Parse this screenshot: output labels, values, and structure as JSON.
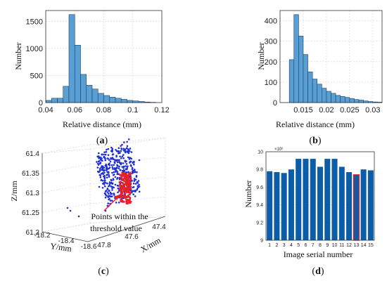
{
  "chart_data": [
    {
      "type": "bar",
      "panel_label": {
        "open": "(",
        "letter": "a",
        "close": ")"
      },
      "xlabel": "Relative distance (mm)",
      "ylabel": "Number",
      "xlim": [
        0.04,
        0.12
      ],
      "ylim": [
        0,
        1700
      ],
      "xticks": [
        "0.04",
        "0.06",
        "0.08",
        "0.1",
        "0.12"
      ],
      "yticks": [
        "0",
        "500",
        "1000",
        "1500"
      ],
      "bin_edges": [
        0.04,
        0.044,
        0.048,
        0.052,
        0.056,
        0.06,
        0.064,
        0.068,
        0.072,
        0.076,
        0.08,
        0.084,
        0.088,
        0.092,
        0.096,
        0.1,
        0.104,
        0.108,
        0.112,
        0.116
      ],
      "values": [
        40,
        80,
        80,
        300,
        1625,
        1060,
        520,
        320,
        250,
        170,
        130,
        100,
        80,
        60,
        40,
        30,
        20,
        10,
        5
      ],
      "grid": true,
      "bar_color": "#5a9fd4"
    },
    {
      "type": "bar",
      "panel_label": {
        "open": "(",
        "letter": "b",
        "close": ")"
      },
      "xlabel": "Relative distance (mm)",
      "ylabel": "Number",
      "xlim": [
        0.01,
        0.032
      ],
      "ylim": [
        0,
        450
      ],
      "xticks": [
        "0.015",
        "0.02",
        "0.025",
        "0.03"
      ],
      "xtick_values": [
        0.015,
        0.02,
        0.025,
        0.03
      ],
      "yticks": [
        "0",
        "100",
        "200",
        "300",
        "400"
      ],
      "bin_edges": [
        0.012,
        0.013,
        0.014,
        0.015,
        0.016,
        0.017,
        0.018,
        0.019,
        0.02,
        0.021,
        0.022,
        0.023,
        0.024,
        0.025,
        0.026,
        0.027,
        0.028,
        0.029,
        0.03,
        0.031,
        0.032
      ],
      "values": [
        210,
        430,
        325,
        235,
        150,
        115,
        90,
        70,
        55,
        45,
        35,
        30,
        25,
        20,
        15,
        12,
        8,
        5,
        3,
        2
      ],
      "grid": true,
      "bar_color": "#5a9fd4"
    },
    {
      "type": "scatter",
      "panel_label": {
        "open": "(",
        "letter": "c",
        "close": ")"
      },
      "zlabel": "Z/mm",
      "ylabel": "Y/mm",
      "xlabel": "X/mm",
      "zticks": [
        "61.2",
        "61.25",
        "61.3",
        "61.35",
        "61.4"
      ],
      "yticks": [
        "-18.2",
        "-18.4",
        "-18.6"
      ],
      "xticks": [
        "47.8",
        "47.6",
        "47.4"
      ],
      "annotation": [
        "Points within the",
        "threshold value"
      ],
      "series": [
        {
          "name": "all points",
          "color": "#1f2fd6"
        },
        {
          "name": "within threshold",
          "color": "#e8202a"
        }
      ]
    },
    {
      "type": "bar",
      "panel_label": {
        "open": "(",
        "letter": "d",
        "close": ")"
      },
      "xlabel": "Image serial number",
      "ylabel": "Number",
      "scale_note": "×10⁶",
      "ylim": [
        9.0,
        10.0
      ],
      "yticks": [
        "9",
        "9.2",
        "9.4",
        "9.6",
        "9.8",
        "10"
      ],
      "categories": [
        "1",
        "2",
        "3",
        "4",
        "5",
        "6",
        "7",
        "8",
        "9",
        "10",
        "11",
        "12",
        "13",
        "14",
        "15"
      ],
      "values": [
        9.78,
        9.77,
        9.76,
        9.8,
        9.92,
        9.92,
        9.92,
        9.83,
        9.92,
        9.92,
        9.83,
        9.77,
        9.74,
        9.8,
        9.79
      ],
      "highlight_index": 12,
      "bar_color": "#0b5da8",
      "highlight_color": "#e8202a",
      "grid": true
    }
  ]
}
